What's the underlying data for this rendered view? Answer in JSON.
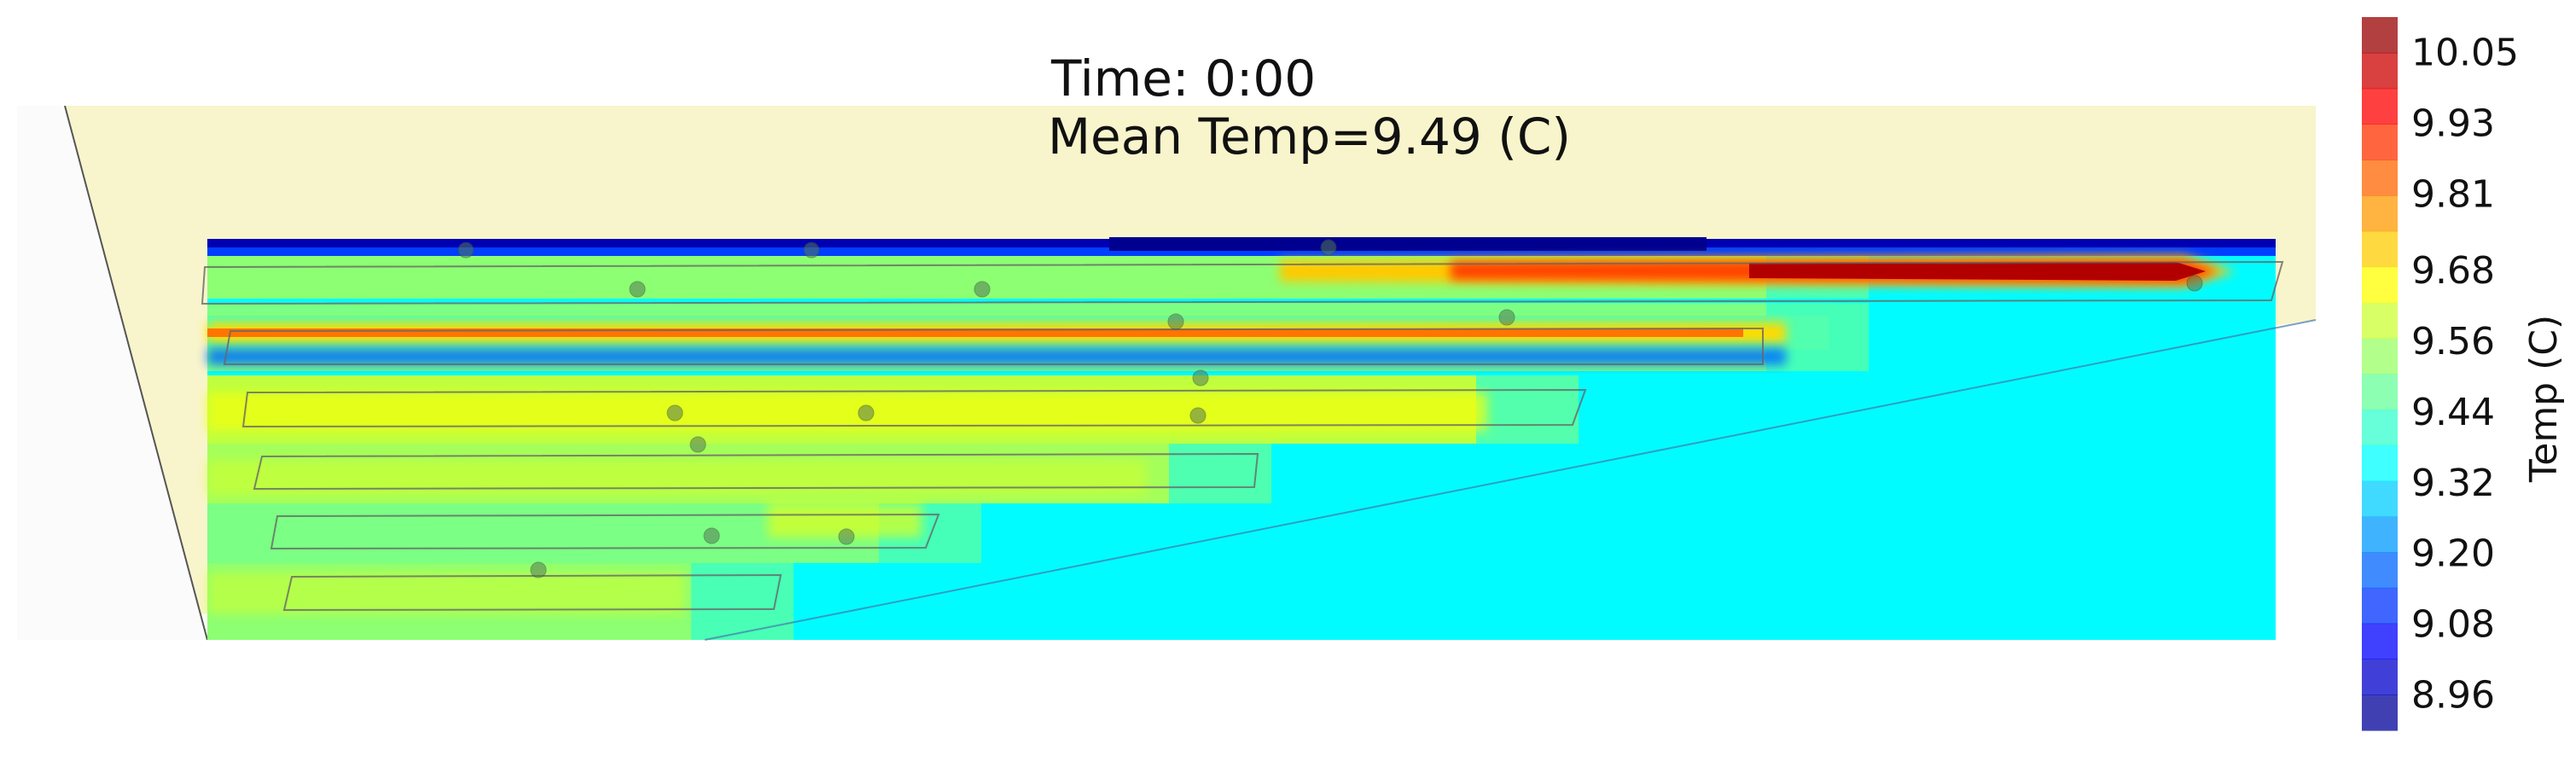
{
  "title": {
    "line1": "Time: 0:00",
    "line2": "Mean Temp=9.49 (C)"
  },
  "chart_data": {
    "type": "heatmap",
    "title": "Time: 0:00 / Mean Temp=9.49 (C)",
    "colormap": "jet",
    "colorbar": {
      "label": "Temp (C)",
      "vmin": 8.9,
      "vmax": 10.11,
      "ticks": [
        8.96,
        9.08,
        9.2,
        9.32,
        9.44,
        9.56,
        9.68,
        9.81,
        9.93,
        10.05
      ],
      "tick_labels": [
        "8.96",
        "9.08",
        "9.20",
        "9.32",
        "9.44",
        "9.56",
        "9.68",
        "9.81",
        "9.93",
        "10.05"
      ],
      "levels": 20,
      "placement": "right"
    },
    "background_value": 9.35,
    "hot_bands": [
      {
        "row": 1,
        "peak": 10.08,
        "side": "right"
      },
      {
        "row": 2,
        "peak": 9.8,
        "side": "left"
      },
      {
        "row": 3,
        "peak": 9.62,
        "side": "left"
      },
      {
        "row": 4,
        "peak": 9.55,
        "side": "left"
      },
      {
        "row": 5,
        "peak": 9.52,
        "side": "left"
      },
      {
        "row": 6,
        "peak": 9.58,
        "side": "left"
      }
    ],
    "top_edge_value": 8.96,
    "grid": false
  },
  "colors": {
    "volume_fill": "#f7f4c6",
    "cold_background": "#48d8fc",
    "outline": "#555555"
  }
}
